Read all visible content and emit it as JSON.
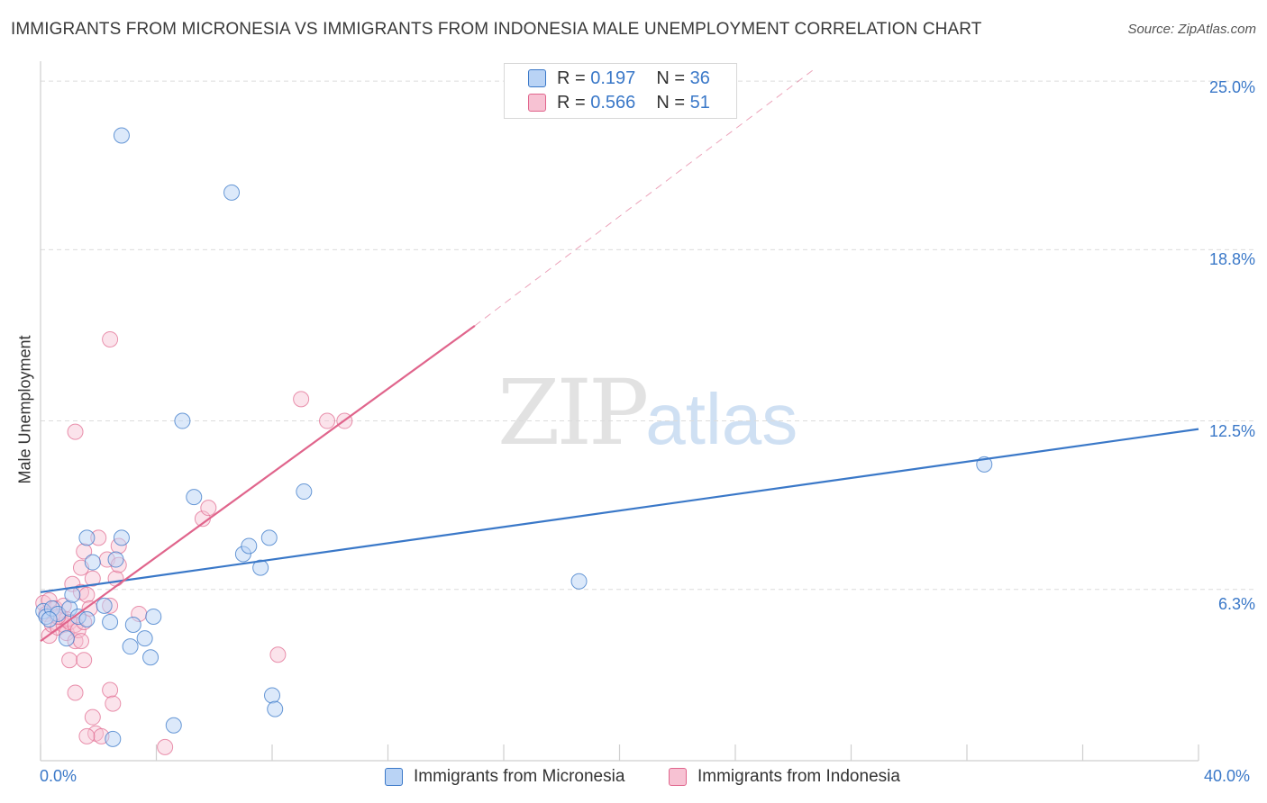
{
  "title": "IMMIGRANTS FROM MICRONESIA VS IMMIGRANTS FROM INDONESIA MALE UNEMPLOYMENT CORRELATION CHART",
  "source": "Source: ZipAtlas.com",
  "watermark": {
    "zip": "ZIP",
    "atlas": "atlas"
  },
  "colors": {
    "blue": "#3a78c8",
    "blue_fill": "#b9d3f5",
    "pink": "#e0658c",
    "pink_fill": "#f7c2d3"
  },
  "legend": {
    "r_label": "R =",
    "n_label": "N =",
    "rows": [
      {
        "r": "0.197",
        "n": "36"
      },
      {
        "r": "0.566",
        "n": "51"
      }
    ]
  },
  "bottom_legend": [
    "Immigrants from Micronesia",
    "Immigrants from Indonesia"
  ],
  "chart_data": {
    "type": "scatter",
    "title": "IMMIGRANTS FROM MICRONESIA VS IMMIGRANTS FROM INDONESIA MALE UNEMPLOYMENT CORRELATION CHART",
    "xlabel": "",
    "ylabel": "Male Unemployment",
    "xlim": [
      0,
      40
    ],
    "ylim": [
      0,
      25.5
    ],
    "x_tick_labels": [
      "0.0%",
      "40.0%"
    ],
    "y_ticks": [
      6.3,
      12.5,
      18.8,
      25.0
    ],
    "y_tick_labels": [
      "6.3%",
      "12.5%",
      "18.8%",
      "25.0%"
    ],
    "series": [
      {
        "name": "Immigrants from Micronesia",
        "r": 0.197,
        "n": 36,
        "trend": {
          "x0": 0,
          "y0": 6.2,
          "x1": 40,
          "y1": 12.2
        },
        "points": [
          [
            0.1,
            5.5
          ],
          [
            0.2,
            5.3
          ],
          [
            0.4,
            5.6
          ],
          [
            0.6,
            5.4
          ],
          [
            0.9,
            4.5
          ],
          [
            1.0,
            5.6
          ],
          [
            1.1,
            6.1
          ],
          [
            1.3,
            5.3
          ],
          [
            1.6,
            8.2
          ],
          [
            1.6,
            5.2
          ],
          [
            1.8,
            7.3
          ],
          [
            2.2,
            5.7
          ],
          [
            2.4,
            5.1
          ],
          [
            2.6,
            7.4
          ],
          [
            2.8,
            8.2
          ],
          [
            2.8,
            23.0
          ],
          [
            3.1,
            4.2
          ],
          [
            3.2,
            5.0
          ],
          [
            3.6,
            4.5
          ],
          [
            3.8,
            3.8
          ],
          [
            3.9,
            5.3
          ],
          [
            4.6,
            1.3
          ],
          [
            4.9,
            12.5
          ],
          [
            5.3,
            9.7
          ],
          [
            6.6,
            20.9
          ],
          [
            7.0,
            7.6
          ],
          [
            7.2,
            7.9
          ],
          [
            7.6,
            7.1
          ],
          [
            7.9,
            8.2
          ],
          [
            8.0,
            2.4
          ],
          [
            8.1,
            1.9
          ],
          [
            9.1,
            9.9
          ],
          [
            2.5,
            0.8
          ],
          [
            18.6,
            6.6
          ],
          [
            32.6,
            10.9
          ],
          [
            0.3,
            5.2
          ]
        ]
      },
      {
        "name": "Immigrants from Indonesia",
        "r": 0.566,
        "n": 51,
        "trend": {
          "x0": 0,
          "y0": 4.4,
          "x1": 15,
          "y1": 16.0
        },
        "trend_ext": {
          "x0": 15,
          "y0": 16.0,
          "x1": 26.8,
          "y1": 25.5
        },
        "points": [
          [
            0.1,
            5.8
          ],
          [
            0.2,
            5.4
          ],
          [
            0.3,
            5.9
          ],
          [
            0.3,
            4.6
          ],
          [
            0.4,
            5.0
          ],
          [
            0.5,
            5.6
          ],
          [
            0.6,
            4.9
          ],
          [
            0.7,
            5.3
          ],
          [
            0.8,
            5.0
          ],
          [
            0.8,
            5.7
          ],
          [
            0.9,
            4.7
          ],
          [
            0.9,
            5.2
          ],
          [
            1.0,
            5.1
          ],
          [
            1.0,
            3.7
          ],
          [
            1.1,
            6.5
          ],
          [
            1.2,
            5.0
          ],
          [
            1.2,
            4.4
          ],
          [
            1.3,
            4.8
          ],
          [
            1.4,
            7.1
          ],
          [
            1.4,
            4.4
          ],
          [
            1.4,
            6.2
          ],
          [
            1.5,
            3.7
          ],
          [
            1.5,
            7.7
          ],
          [
            1.5,
            5.1
          ],
          [
            1.6,
            6.1
          ],
          [
            1.7,
            5.6
          ],
          [
            1.8,
            6.7
          ],
          [
            1.8,
            1.6
          ],
          [
            1.9,
            1.0
          ],
          [
            2.0,
            8.2
          ],
          [
            2.1,
            0.9
          ],
          [
            1.2,
            2.5
          ],
          [
            1.6,
            0.9
          ],
          [
            2.3,
            7.4
          ],
          [
            2.4,
            5.7
          ],
          [
            2.4,
            2.6
          ],
          [
            2.4,
            15.5
          ],
          [
            2.5,
            2.1
          ],
          [
            2.6,
            6.7
          ],
          [
            2.7,
            7.2
          ],
          [
            2.7,
            7.9
          ],
          [
            1.2,
            12.1
          ],
          [
            3.4,
            5.4
          ],
          [
            4.3,
            0.5
          ],
          [
            5.6,
            8.9
          ],
          [
            5.8,
            9.3
          ],
          [
            8.2,
            3.9
          ],
          [
            9.0,
            13.3
          ],
          [
            9.9,
            12.5
          ],
          [
            10.5,
            12.5
          ],
          [
            0.6,
            5.3
          ]
        ]
      }
    ]
  }
}
